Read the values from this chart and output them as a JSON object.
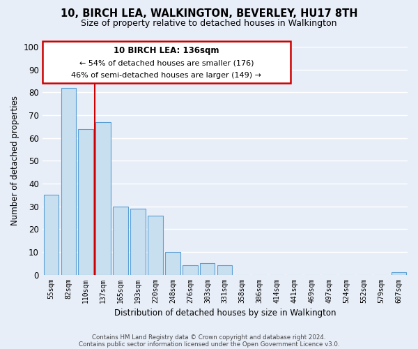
{
  "title": "10, BIRCH LEA, WALKINGTON, BEVERLEY, HU17 8TH",
  "subtitle": "Size of property relative to detached houses in Walkington",
  "xlabel": "Distribution of detached houses by size in Walkington",
  "ylabel": "Number of detached properties",
  "bar_labels": [
    "55sqm",
    "82sqm",
    "110sqm",
    "137sqm",
    "165sqm",
    "193sqm",
    "220sqm",
    "248sqm",
    "276sqm",
    "303sqm",
    "331sqm",
    "358sqm",
    "386sqm",
    "414sqm",
    "441sqm",
    "469sqm",
    "497sqm",
    "524sqm",
    "552sqm",
    "579sqm",
    "607sqm"
  ],
  "bar_values": [
    35,
    82,
    64,
    67,
    30,
    29,
    26,
    10,
    4,
    5,
    4,
    0,
    0,
    0,
    0,
    0,
    0,
    0,
    0,
    0,
    1
  ],
  "bar_color": "#c8dff0",
  "bar_edge_color": "#5a9fd4",
  "vline_x": 2.5,
  "vline_color": "#cc0000",
  "ylim": [
    0,
    100
  ],
  "yticks": [
    0,
    10,
    20,
    30,
    40,
    50,
    60,
    70,
    80,
    90,
    100
  ],
  "annotation_title": "10 BIRCH LEA: 136sqm",
  "annotation_line1": "← 54% of detached houses are smaller (176)",
  "annotation_line2": "46% of semi-detached houses are larger (149) →",
  "annotation_box_color": "#ffffff",
  "annotation_box_edge": "#cc0000",
  "footer_line1": "Contains HM Land Registry data © Crown copyright and database right 2024.",
  "footer_line2": "Contains public sector information licensed under the Open Government Licence v3.0.",
  "background_color": "#e8eef8",
  "grid_color": "#ffffff"
}
